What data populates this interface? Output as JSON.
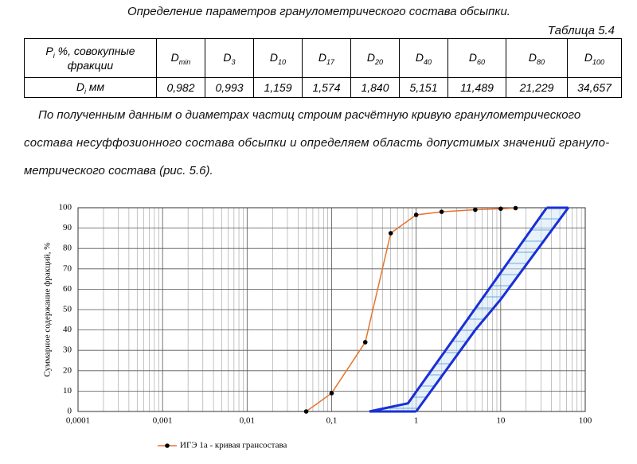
{
  "header": {
    "title": "Определение параметров гранулометрического состава обсыпки.",
    "table_label": "Таблица 5.4"
  },
  "table": {
    "header": [
      {
        "main": "P",
        "sub": "i",
        "rest": " %, совокупные фракции"
      },
      {
        "main": "D",
        "sub": "min"
      },
      {
        "main": "D",
        "sub": "3"
      },
      {
        "main": "D",
        "sub": "10"
      },
      {
        "main": "D",
        "sub": "17"
      },
      {
        "main": "D",
        "sub": "20"
      },
      {
        "main": "D",
        "sub": "40"
      },
      {
        "main": "D",
        "sub": "60"
      },
      {
        "main": "D",
        "sub": "80"
      },
      {
        "main": "D",
        "sub": "100"
      }
    ],
    "row_label": {
      "main": "D",
      "sub": "i",
      "rest": " мм"
    },
    "row": [
      "0,982",
      "0,993",
      "1,159",
      "1,574",
      "1,840",
      "5,151",
      "11,489",
      "21,229",
      "34,657"
    ]
  },
  "paragraph": [
    "По полученным данным о диаметрах частиц строим расчётную кривую гранулометрического",
    "состава несуффозионного состава обсыпки и определяем область допустимых значений грануло-",
    "метрического состава (рис. 5.6)."
  ],
  "chart_data": {
    "type": "line",
    "ylabel": "Суммарное содержание фракций, %",
    "xscale": "log",
    "grid": true,
    "xlim": [
      0.0001,
      100
    ],
    "ylim": [
      0,
      100
    ],
    "xticks": [
      {
        "value": 0.0001,
        "label": "0,0001"
      },
      {
        "value": 0.001,
        "label": "0,001"
      },
      {
        "value": 0.01,
        "label": "0,01"
      },
      {
        "value": 0.1,
        "label": "0,1"
      },
      1,
      10,
      100
    ],
    "yticks": [
      0,
      10,
      20,
      30,
      40,
      50,
      60,
      70,
      80,
      90,
      100
    ],
    "series": [
      {
        "name": "ИГЭ 1а - кривая грансостава",
        "color": "#e8732c",
        "markers": true,
        "x": [
          0.05,
          0.1,
          0.25,
          0.5,
          1,
          2,
          5,
          10,
          15
        ],
        "values": [
          0,
          9,
          34,
          87.5,
          96.5,
          98,
          99,
          99.5,
          99.8
        ]
      },
      {
        "color": "#1a2fd6",
        "x": [
          0.28,
          0.8,
          35
        ],
        "values": [
          0,
          4,
          100
        ]
      },
      {
        "color": "#1a2fd6",
        "x": [
          1,
          5,
          10,
          63
        ],
        "values": [
          0,
          40,
          55,
          100
        ]
      }
    ]
  }
}
